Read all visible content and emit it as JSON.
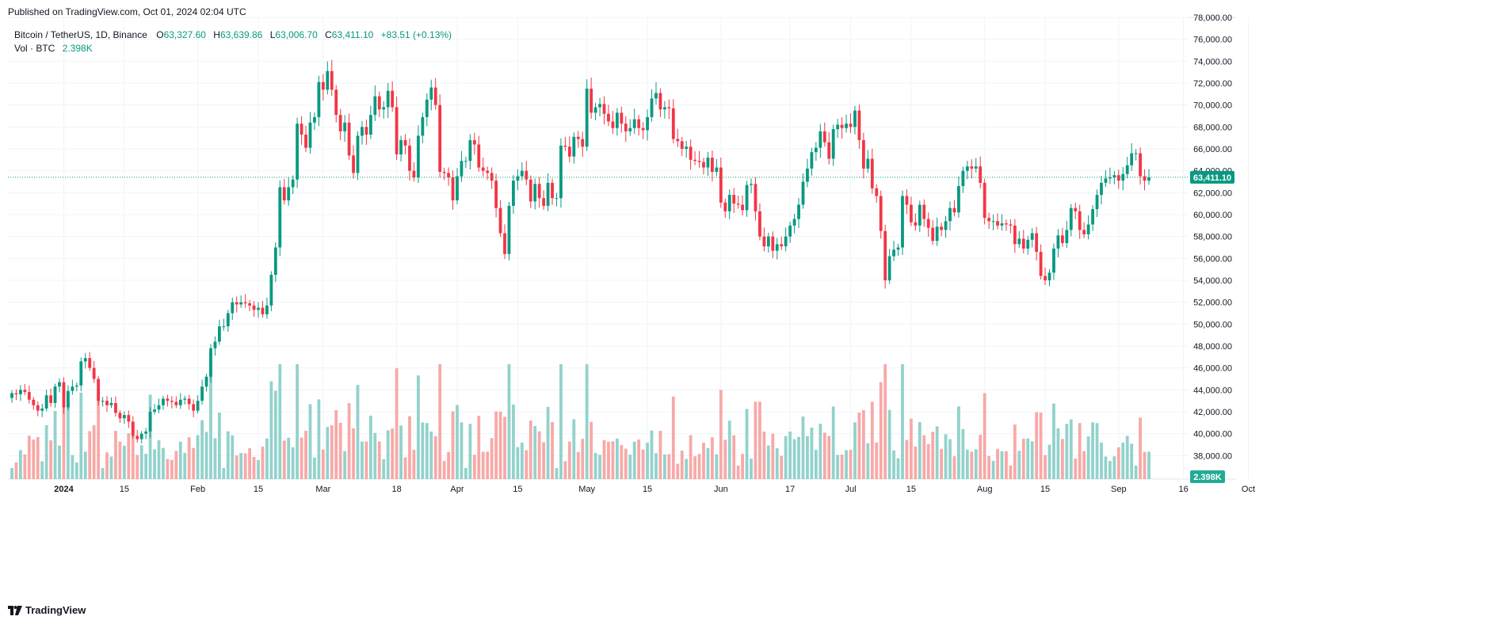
{
  "header": {
    "published": "Published on TradingView.com, Oct 01, 2024 02:04 UTC"
  },
  "legend": {
    "symbol": "Bitcoin / TetherUS, 1D, Binance",
    "open_label": "O",
    "open": "63,327.60",
    "high_label": "H",
    "high": "63,639.86",
    "low_label": "L",
    "low": "63,006.70",
    "close_label": "C",
    "close": "63,411.10",
    "change": "+83.51 (+0.13%)",
    "vol_label": "Vol · BTC",
    "vol_value": "2.398K"
  },
  "footer": {
    "brand": "TradingView",
    "logo_icon": "tradingview-logo-icon"
  },
  "colors": {
    "up": "#089981",
    "down": "#f23645",
    "up_vol": "#92d2cc",
    "down_vol": "#f7a9a7",
    "grid": "#f0f3fa",
    "axis_text": "#131722"
  },
  "chart_data": {
    "type": "candlestick",
    "title": "Bitcoin / TetherUS, 1D, Binance",
    "ylim": [
      36000,
      78000
    ],
    "y_ticks": [
      "38,000.00",
      "40,000.00",
      "42,000.00",
      "44,000.00",
      "46,000.00",
      "48,000.00",
      "50,000.00",
      "52,000.00",
      "54,000.00",
      "56,000.00",
      "58,000.00",
      "60,000.00",
      "62,000.00",
      "64,000.00",
      "66,000.00",
      "68,000.00",
      "70,000.00",
      "72,000.00",
      "74,000.00",
      "76,000.00",
      "78,000.00"
    ],
    "y_tick_values": [
      38000,
      40000,
      42000,
      44000,
      46000,
      48000,
      50000,
      52000,
      54000,
      56000,
      58000,
      60000,
      62000,
      64000,
      66000,
      68000,
      70000,
      72000,
      74000,
      76000,
      78000
    ],
    "x_ticks": [
      {
        "label": "2024",
        "date": "2024-01-01",
        "bold": true
      },
      {
        "label": "15",
        "date": "2024-01-15"
      },
      {
        "label": "Feb",
        "date": "2024-02-01"
      },
      {
        "label": "15",
        "date": "2024-02-15"
      },
      {
        "label": "Mar",
        "date": "2024-03-01"
      },
      {
        "label": "18",
        "date": "2024-03-18"
      },
      {
        "label": "Apr",
        "date": "2024-04-01"
      },
      {
        "label": "15",
        "date": "2024-04-15"
      },
      {
        "label": "May",
        "date": "2024-05-01"
      },
      {
        "label": "15",
        "date": "2024-05-15"
      },
      {
        "label": "Jun",
        "date": "2024-06-01"
      },
      {
        "label": "17",
        "date": "2024-06-17"
      },
      {
        "label": "Jul",
        "date": "2024-07-01"
      },
      {
        "label": "15",
        "date": "2024-07-15"
      },
      {
        "label": "Aug",
        "date": "2024-08-01"
      },
      {
        "label": "15",
        "date": "2024-08-15"
      },
      {
        "label": "Sep",
        "date": "2024-09-01"
      },
      {
        "label": "16",
        "date": "2024-09-16"
      },
      {
        "label": "Oct",
        "date": "2024-10-01"
      }
    ],
    "last_price_label": "63,411.10",
    "last_price": 63411.1,
    "volume_label": "2.398K",
    "start_date": "2023-12-20",
    "series": [
      {
        "name": "BTCUSDT",
        "close": [
          43700,
          43600,
          44000,
          43800,
          43100,
          42600,
          42100,
          42300,
          43500,
          42800,
          44300,
          44700,
          42400,
          43900,
          44300,
          44400,
          46600,
          46900,
          46000,
          45000,
          43000,
          43000,
          42600,
          42800,
          41900,
          41400,
          41700,
          41100,
          39800,
          39500,
          40000,
          40200,
          42000,
          42200,
          42600,
          43200,
          43000,
          42900,
          42600,
          43100,
          43200,
          42700,
          42100,
          43000,
          44300,
          45200,
          47800,
          48400,
          49800,
          49800,
          51000,
          52000,
          51800,
          52000,
          51900,
          51700,
          51300,
          51500,
          50900,
          51700,
          54500,
          57000,
          62500,
          61300,
          62500,
          63200,
          68300,
          67300,
          66100,
          68400,
          68900,
          72100,
          71400,
          73100,
          71400,
          69100,
          67600,
          68400,
          65400,
          63800,
          67200,
          68000,
          67300,
          69100,
          70800,
          69600,
          69800,
          71300,
          69800,
          65500,
          66800,
          66300,
          64000,
          63400,
          67200,
          68900,
          70500,
          71600,
          70000,
          63900,
          63800,
          63400,
          61300,
          63500,
          64900,
          64900,
          66800,
          66400,
          64300,
          64000,
          63800,
          63100,
          60600,
          58300,
          56400,
          60800,
          63100,
          63500,
          64000,
          63200,
          61200,
          62800,
          61500,
          60800,
          62900,
          61500,
          61500,
          66300,
          66200,
          65300,
          67100,
          66900,
          66200,
          71500,
          69300,
          69800,
          70100,
          69200,
          68500,
          67900,
          69300,
          68300,
          67600,
          67900,
          68700,
          67900,
          67700,
          68900,
          70600,
          71100,
          69600,
          69800,
          69700,
          66900,
          66700,
          66000,
          66200,
          65000,
          64900,
          64800,
          64300,
          65200,
          63900,
          64300,
          61100,
          60300,
          61800,
          61000,
          60900,
          60400,
          62700,
          62800,
          60300,
          58000,
          57100,
          58000,
          56700,
          57300,
          57100,
          58000,
          59000,
          59600,
          60900,
          63000,
          64200,
          65700,
          66100,
          67600,
          66600,
          65100,
          67800,
          68200,
          67900,
          68300,
          68000,
          69500,
          66800,
          64200,
          65100,
          62400,
          61700,
          58500,
          54000,
          56200,
          56800,
          57000,
          61700,
          60900,
          59300,
          59000,
          60900,
          59600,
          58800,
          57600,
          58900,
          58600,
          59400,
          60600,
          60200,
          62600,
          64000,
          64400,
          64200,
          64400,
          62900,
          59700,
          59400,
          59400,
          59000,
          59200,
          59100,
          59000,
          57300,
          57800,
          56900,
          57700,
          58300,
          56600,
          54400,
          54000,
          54700,
          56900,
          58100,
          57400,
          58600,
          60600,
          60300,
          58600,
          58200,
          59100,
          60500,
          61800,
          62900,
          63300,
          63400,
          63600,
          63100,
          63700,
          64500,
          65600,
          65600,
          63500,
          63100,
          63400
        ]
      }
    ]
  }
}
